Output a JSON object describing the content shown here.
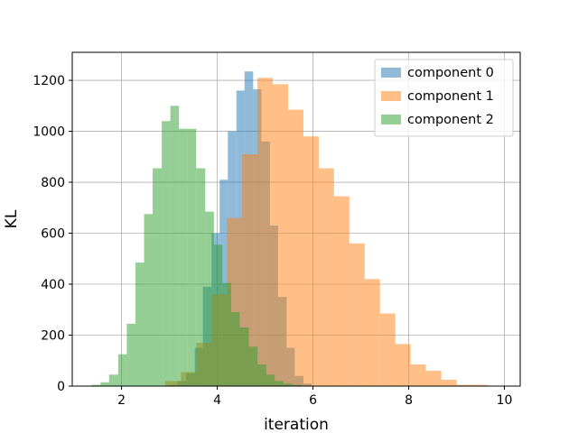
{
  "chart_data": {
    "type": "bar",
    "subtype": "histogram",
    "xlabel": "iteration",
    "ylabel": "KL",
    "xlim": [
      0.97,
      10.33
    ],
    "ylim": [
      0,
      1310
    ],
    "xticks": [
      2,
      4,
      6,
      8,
      10
    ],
    "yticks": [
      0,
      200,
      400,
      600,
      800,
      1000,
      1200
    ],
    "grid": true,
    "legend": "top-right",
    "series": [
      {
        "name": "component 0",
        "color": "#1f77b4",
        "opacity": 0.5,
        "bins": [
          [
            3.0,
            3.17,
            5
          ],
          [
            3.17,
            3.35,
            20
          ],
          [
            3.35,
            3.53,
            50
          ],
          [
            3.53,
            3.7,
            150
          ],
          [
            3.7,
            3.88,
            390
          ],
          [
            3.88,
            4.05,
            600
          ],
          [
            4.05,
            4.22,
            810
          ],
          [
            4.22,
            4.4,
            1000
          ],
          [
            4.4,
            4.57,
            1160
          ],
          [
            4.57,
            4.75,
            1235
          ],
          [
            4.75,
            4.92,
            1165
          ],
          [
            4.92,
            5.1,
            960
          ],
          [
            5.1,
            5.27,
            630
          ],
          [
            5.27,
            5.45,
            350
          ],
          [
            5.45,
            5.62,
            150
          ],
          [
            5.62,
            5.8,
            40
          ],
          [
            5.8,
            5.97,
            10
          ]
        ]
      },
      {
        "name": "component 1",
        "color": "#ff7f0e",
        "opacity": 0.5,
        "bins": [
          [
            2.91,
            3.24,
            20
          ],
          [
            3.24,
            3.56,
            55
          ],
          [
            3.56,
            3.88,
            170
          ],
          [
            3.88,
            4.2,
            360
          ],
          [
            4.2,
            4.52,
            660
          ],
          [
            4.52,
            4.84,
            910
          ],
          [
            4.84,
            5.16,
            1210
          ],
          [
            5.16,
            5.48,
            1185
          ],
          [
            5.48,
            5.8,
            1085
          ],
          [
            5.8,
            6.12,
            980
          ],
          [
            6.12,
            6.44,
            855
          ],
          [
            6.44,
            6.76,
            745
          ],
          [
            6.76,
            7.08,
            560
          ],
          [
            7.08,
            7.4,
            420
          ],
          [
            7.4,
            7.72,
            285
          ],
          [
            7.72,
            8.04,
            165
          ],
          [
            8.04,
            8.36,
            85
          ],
          [
            8.36,
            8.68,
            60
          ],
          [
            8.68,
            9.0,
            25
          ],
          [
            9.0,
            9.32,
            5
          ],
          [
            9.32,
            9.64,
            5
          ]
        ]
      },
      {
        "name": "component 2",
        "color": "#2ca02c",
        "opacity": 0.5,
        "bins": [
          [
            1.38,
            1.56,
            5
          ],
          [
            1.56,
            1.74,
            15
          ],
          [
            1.74,
            1.93,
            45
          ],
          [
            1.93,
            2.11,
            125
          ],
          [
            2.11,
            2.29,
            245
          ],
          [
            2.29,
            2.47,
            485
          ],
          [
            2.47,
            2.65,
            675
          ],
          [
            2.65,
            2.84,
            855
          ],
          [
            2.84,
            3.02,
            1040
          ],
          [
            3.02,
            3.2,
            1100
          ],
          [
            3.2,
            3.38,
            1010
          ],
          [
            3.38,
            3.56,
            1010
          ],
          [
            3.56,
            3.75,
            855
          ],
          [
            3.75,
            3.93,
            685
          ],
          [
            3.93,
            4.11,
            555
          ],
          [
            4.11,
            4.29,
            405
          ],
          [
            4.29,
            4.47,
            290
          ],
          [
            4.47,
            4.66,
            230
          ],
          [
            4.66,
            4.84,
            155
          ],
          [
            4.84,
            5.02,
            85
          ],
          [
            5.02,
            5.2,
            45
          ],
          [
            5.2,
            5.38,
            20
          ],
          [
            5.38,
            5.57,
            10
          ],
          [
            5.57,
            5.75,
            5
          ]
        ]
      }
    ]
  }
}
